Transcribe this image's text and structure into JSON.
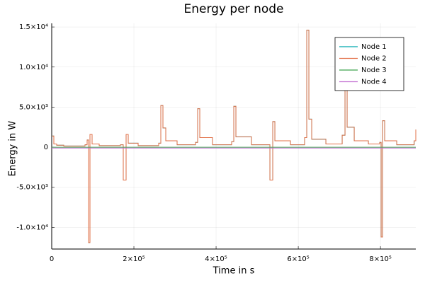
{
  "chart_data": {
    "type": "step",
    "title": "Energy per node",
    "xlabel": "Time in s",
    "ylabel": "Energy in W",
    "x": [
      0,
      5172,
      12068,
      29308,
      81028,
      86200,
      89648,
      93096,
      98268,
      115508,
      167228,
      174124,
      181020,
      186192,
      210328,
      260324,
      265496,
      270668,
      277564,
      305148,
      349972,
      355144,
      360316,
      391348,
      437896,
      443068,
      448240,
      486168,
      530992,
      537888,
      543060,
      580988,
      615468,
      620640,
      625812,
      632708,
      667188,
      706840,
      713736,
      718908,
      736148,
      770628,
      798212,
      801660,
      805108,
      810280,
      839588,
      882000,
      886000
    ],
    "series": [
      {
        "name": "Node 1",
        "color": "#00a9ad",
        "values": [
          1400,
          400,
          250,
          150,
          300,
          900,
          -11900,
          1600,
          400,
          200,
          300,
          -4100,
          1600,
          500,
          200,
          500,
          5200,
          2400,
          800,
          300,
          600,
          4800,
          1200,
          300,
          700,
          5100,
          1300,
          300,
          -4100,
          3200,
          800,
          300,
          1200,
          14600,
          3500,
          1000,
          400,
          1500,
          7600,
          2500,
          800,
          400,
          600,
          -11200,
          3300,
          800,
          300,
          800,
          2200
        ]
      },
      {
        "name": "Node 2",
        "color": "#e26f46",
        "values": [
          1400,
          400,
          250,
          150,
          300,
          900,
          -11900,
          1600,
          400,
          200,
          300,
          -4100,
          1600,
          500,
          200,
          500,
          5200,
          2400,
          800,
          300,
          600,
          4800,
          1200,
          300,
          700,
          5100,
          1300,
          300,
          -4100,
          3200,
          800,
          300,
          1200,
          14600,
          3500,
          1000,
          400,
          1500,
          7600,
          2500,
          800,
          400,
          600,
          -11200,
          3300,
          800,
          300,
          800,
          2200
        ]
      },
      {
        "name": "Node 3",
        "color": "#3da44d",
        "values": [
          0,
          0,
          0,
          0,
          0,
          0,
          0,
          0,
          0,
          0,
          0,
          0,
          0,
          0,
          0,
          0,
          0,
          0,
          0,
          0,
          0,
          0,
          0,
          0,
          0,
          0,
          0,
          0,
          0,
          0,
          0,
          0,
          0,
          0,
          0,
          0,
          0,
          0,
          0,
          0,
          0,
          0,
          0,
          0,
          0,
          0,
          0,
          0,
          0
        ]
      },
      {
        "name": "Node 4",
        "color": "#c271d2",
        "values": [
          -100,
          -100,
          -100,
          -100,
          -100,
          -100,
          -100,
          -100,
          -100,
          -100,
          -100,
          -100,
          -100,
          -100,
          -100,
          -100,
          -100,
          -100,
          -100,
          -100,
          -100,
          -100,
          -100,
          -100,
          -100,
          -100,
          -100,
          -100,
          -100,
          -100,
          -100,
          -100,
          -100,
          -100,
          -100,
          -100,
          -100,
          -100,
          -100,
          -100,
          -100,
          -100,
          -100,
          -100,
          -100,
          -100,
          -100,
          -100,
          -100
        ]
      }
    ],
    "xlim": [
      0,
      886000
    ],
    "ylim": [
      -12700,
      15450
    ],
    "xticks": [
      0,
      {
        "value": 200000,
        "label": "2×10⁵"
      },
      {
        "value": 400000,
        "label": "4×10⁵"
      },
      {
        "value": 600000,
        "label": "6×10⁵"
      },
      {
        "value": 800000,
        "label": "8×10⁵"
      }
    ],
    "yticks": [
      {
        "value": -10000,
        "label": "-1.0×10⁴"
      },
      {
        "value": -5000,
        "label": "-5.0×10³"
      },
      0,
      {
        "value": 5000,
        "label": "5.0×10³"
      },
      {
        "value": 10000,
        "label": "1.0×10⁴"
      },
      {
        "value": 15000,
        "label": "1.5×10⁴"
      }
    ],
    "grid": true,
    "legend": "top-right"
  }
}
